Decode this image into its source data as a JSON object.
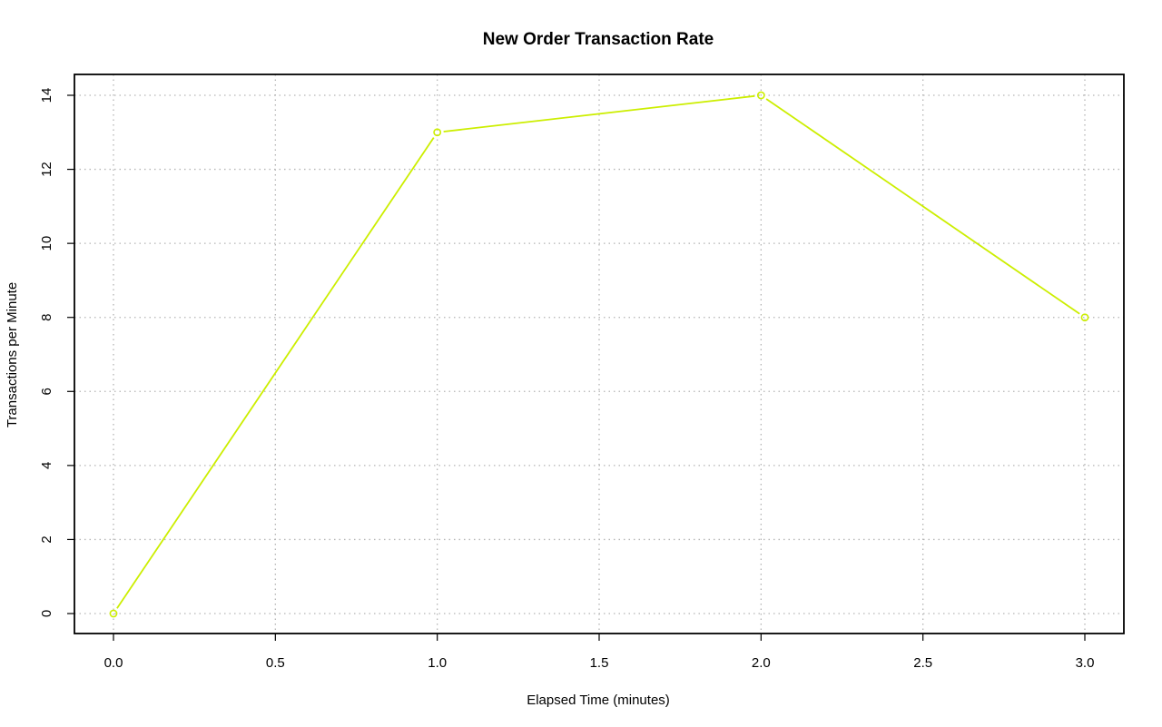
{
  "chart_data": {
    "type": "line",
    "title": "New Order Transaction Rate",
    "xlabel": "Elapsed Time (minutes)",
    "ylabel": "Transactions per Minute",
    "xlim": [
      0.0,
      3.0
    ],
    "ylim": [
      0,
      14
    ],
    "x_ticks": [
      "0.0",
      "0.5",
      "1.0",
      "1.5",
      "2.0",
      "2.5",
      "3.0"
    ],
    "y_ticks": [
      "0",
      "2",
      "4",
      "6",
      "8",
      "10",
      "12",
      "14"
    ],
    "grid": true,
    "series": [
      {
        "color": "#ccee00",
        "x": [
          0.0,
          1.0,
          2.0,
          3.0
        ],
        "y": [
          0,
          13,
          14,
          8
        ],
        "marker": "circle-open"
      }
    ]
  }
}
